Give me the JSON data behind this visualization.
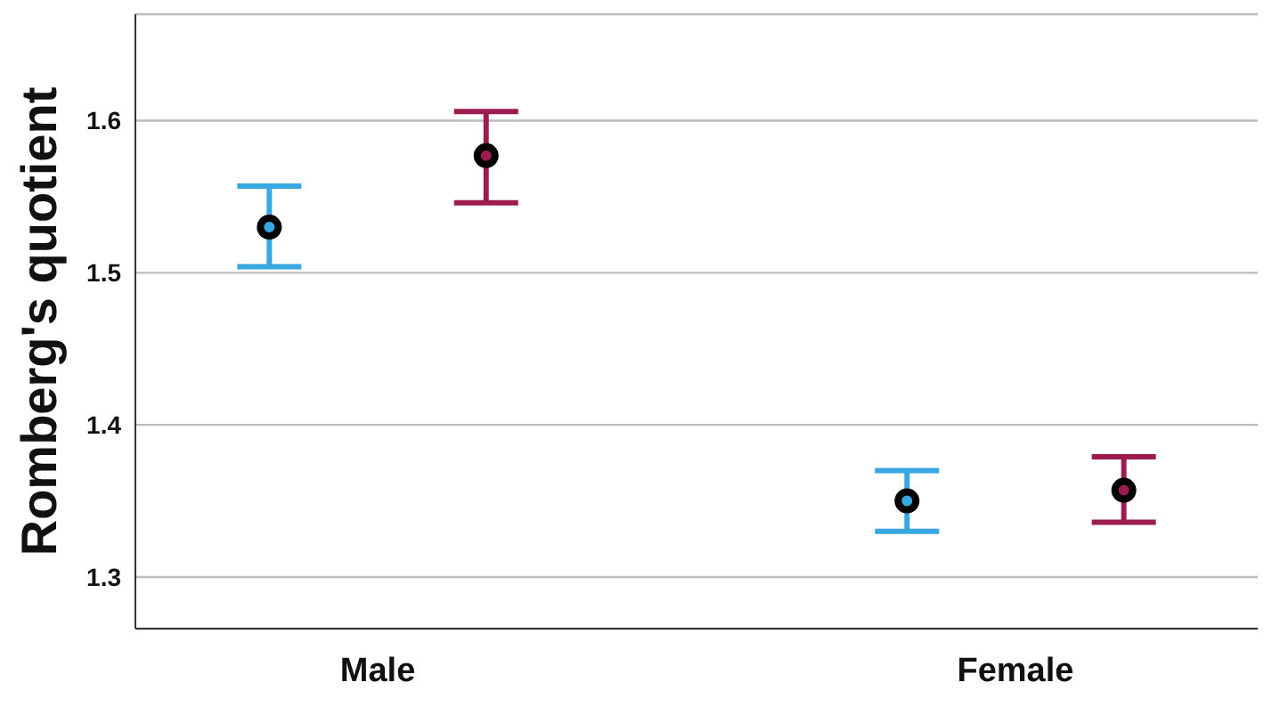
{
  "chart_data": {
    "type": "scatter",
    "ylabel": "Romberg's quotient",
    "categories": [
      "Male",
      "Female"
    ],
    "series": [
      {
        "color": "#3aa8e0",
        "values": [
          1.53,
          1.35
        ],
        "errors": [
          [
            1.504,
            1.557
          ],
          [
            1.33,
            1.37
          ]
        ]
      },
      {
        "color": "#9b1c4f",
        "values": [
          1.577,
          1.357
        ],
        "errors": [
          [
            1.546,
            1.606
          ],
          [
            1.336,
            1.379
          ]
        ]
      }
    ],
    "ylim": [
      1.266,
      1.67
    ],
    "yticks": [
      1.3,
      1.4,
      1.5,
      1.6
    ],
    "grid": "y",
    "legend": false,
    "marker": "circle"
  }
}
